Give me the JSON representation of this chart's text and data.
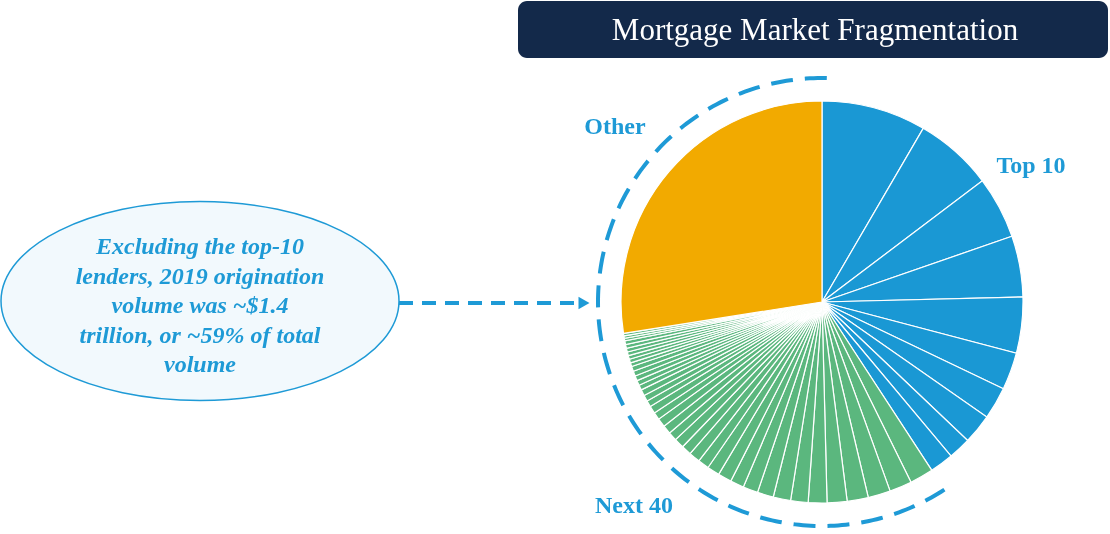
{
  "chart_data": {
    "type": "pie",
    "title": "Mortgage Market Fragmentation",
    "categories": [
      null,
      null,
      null,
      null,
      null,
      null,
      null,
      null,
      null,
      null,
      null,
      null,
      null,
      null,
      null,
      null,
      null,
      null,
      null,
      null,
      null,
      null,
      null,
      null,
      null,
      null,
      null,
      null,
      null,
      null,
      null,
      null,
      null,
      null,
      null,
      null,
      null,
      null,
      null,
      null,
      null,
      null,
      null,
      null,
      null,
      null,
      null,
      null,
      null,
      null,
      null
    ],
    "values": [
      8.4,
      6.3,
      5.0,
      4.9,
      4.5,
      3.0,
      2.6,
      2.4,
      1.8,
      1.9,
      1.9,
      1.8,
      1.8,
      1.7,
      1.6,
      1.5,
      1.4,
      1.4,
      1.3,
      1.2,
      1.1,
      1.1,
      1.0,
      0.9,
      0.9,
      0.8,
      0.8,
      0.7,
      0.7,
      0.7,
      0.6,
      0.6,
      0.5,
      0.5,
      0.5,
      0.4,
      0.4,
      0.4,
      0.4,
      0.4,
      0.3,
      0.3,
      0.3,
      0.3,
      0.3,
      0.3,
      0.3,
      0.2,
      0.2,
      0.2,
      27.5
    ],
    "colors": [
      "#1a98d4",
      "#1a98d4",
      "#1a98d4",
      "#1a98d4",
      "#1a98d4",
      "#1a98d4",
      "#1a98d4",
      "#1a98d4",
      "#1a98d4",
      "#1a98d4",
      "#5bb77e",
      "#5bb77e",
      "#5bb77e",
      "#5bb77e",
      "#5bb77e",
      "#5bb77e",
      "#5bb77e",
      "#5bb77e",
      "#5bb77e",
      "#5bb77e",
      "#5bb77e",
      "#5bb77e",
      "#5bb77e",
      "#5bb77e",
      "#5bb77e",
      "#5bb77e",
      "#5bb77e",
      "#5bb77e",
      "#5bb77e",
      "#5bb77e",
      "#5bb77e",
      "#5bb77e",
      "#5bb77e",
      "#5bb77e",
      "#5bb77e",
      "#5bb77e",
      "#5bb77e",
      "#5bb77e",
      "#5bb77e",
      "#5bb77e",
      "#5bb77e",
      "#5bb77e",
      "#5bb77e",
      "#5bb77e",
      "#5bb77e",
      "#5bb77e",
      "#5bb77e",
      "#5bb77e",
      "#5bb77e",
      "#5bb77e",
      "#f2aa00"
    ],
    "annotations": [
      "Top 10",
      "Next 40",
      "Other",
      "Excluding the top-10 lenders, 2019 origination volume was ~$1.4 trillion, or ~59% of total volume"
    ]
  }
}
